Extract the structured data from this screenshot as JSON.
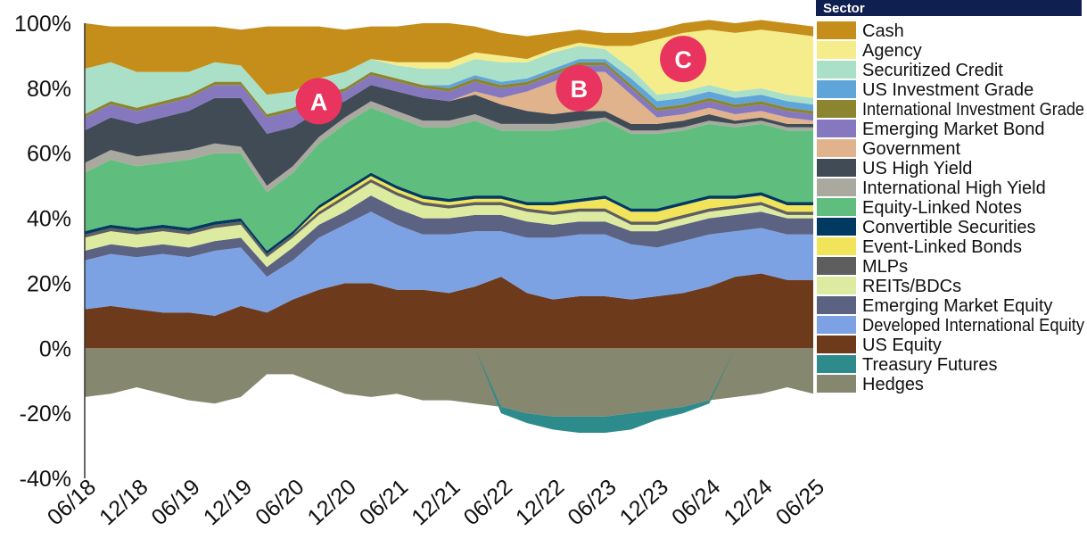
{
  "chart_data": {
    "type": "area",
    "stacked": true,
    "x": [
      "06/18",
      "09/18",
      "12/18",
      "03/19",
      "06/19",
      "09/19",
      "12/19",
      "03/20",
      "06/20",
      "09/20",
      "12/20",
      "03/21",
      "06/21",
      "09/21",
      "12/21",
      "03/22",
      "06/22",
      "09/22",
      "12/22",
      "03/23",
      "06/23",
      "09/23",
      "12/23",
      "03/24",
      "06/24",
      "09/24",
      "12/24",
      "03/25",
      "06/25"
    ],
    "xtick_labels": [
      "06/18",
      "12/18",
      "06/19",
      "12/19",
      "06/20",
      "12/20",
      "06/21",
      "12/21",
      "06/22",
      "12/22",
      "06/23",
      "12/23",
      "06/24",
      "12/24",
      "06/25"
    ],
    "ylim": [
      -40,
      100
    ],
    "yticks": [
      -40,
      -20,
      0,
      20,
      40,
      60,
      80,
      100
    ],
    "ytick_labels": [
      "-40%",
      "-20%",
      "0%",
      "20%",
      "40%",
      "60%",
      "80%",
      "100%"
    ],
    "legend_title": "Sector",
    "legend_position": "right",
    "series": [
      {
        "name": "Hedges",
        "color": "#85876F",
        "values": [
          -15,
          -14,
          -12,
          -14,
          -16,
          -17,
          -15,
          -8,
          -8,
          -11,
          -14,
          -15,
          -14,
          -16,
          -16,
          -17,
          -18,
          -20,
          -21,
          -21,
          -21,
          -20,
          -19,
          -18,
          -16,
          -15,
          -14,
          -12,
          -14
        ]
      },
      {
        "name": "Treasury Futures",
        "color": "#2E8B8C",
        "values": [
          0,
          0,
          0,
          0,
          0,
          0,
          0,
          0,
          0,
          0,
          0,
          0,
          0,
          0,
          0,
          0,
          -2,
          -3,
          -4,
          -5,
          -5,
          -5,
          -3,
          -2,
          -1,
          0,
          0,
          0,
          0
        ]
      },
      {
        "name": "US Equity",
        "color": "#6E3A1C",
        "values": [
          12,
          13,
          12,
          11,
          11,
          10,
          13,
          11,
          15,
          18,
          20,
          20,
          18,
          18,
          17,
          19,
          22,
          17,
          15,
          16,
          16,
          15,
          16,
          17,
          19,
          22,
          23,
          21,
          21
        ]
      },
      {
        "name": "Developed International Equity",
        "color": "#7CA2E4",
        "values": [
          15,
          16,
          16,
          18,
          17,
          20,
          18,
          11,
          12,
          16,
          18,
          22,
          20,
          17,
          18,
          17,
          14,
          17,
          19,
          19,
          19,
          17,
          15,
          16,
          16,
          14,
          14,
          14,
          14
        ]
      },
      {
        "name": "Emerging Market Equity",
        "color": "#5C6282",
        "values": [
          3,
          3,
          3,
          3,
          3,
          3,
          3,
          3,
          4,
          4,
          4,
          5,
          5,
          5,
          5,
          5,
          5,
          5,
          4,
          4,
          4,
          4,
          5,
          5,
          5,
          5,
          5,
          5,
          5
        ]
      },
      {
        "name": "REITs/BDCs",
        "color": "#DDEBA0",
        "values": [
          4,
          4,
          4,
          4,
          4,
          4,
          4,
          3,
          3,
          3,
          4,
          4,
          4,
          4,
          3,
          3,
          3,
          3,
          3,
          3,
          3,
          2,
          2,
          2,
          2,
          2,
          2,
          1,
          1
        ]
      },
      {
        "name": "MLPs",
        "color": "#5E5E5E",
        "values": [
          1,
          1,
          1,
          1,
          1,
          1,
          1,
          1,
          1,
          1,
          1,
          1,
          1,
          1,
          1,
          1,
          1,
          1,
          1,
          1,
          1,
          1,
          1,
          1,
          1,
          1,
          1,
          1,
          1
        ]
      },
      {
        "name": "Event-Linked Bonds",
        "color": "#F1E45A",
        "values": [
          0,
          0,
          0,
          0,
          0,
          0,
          0,
          0,
          0,
          1,
          1,
          1,
          1,
          1,
          1,
          1,
          1,
          1,
          2,
          2,
          3,
          3,
          3,
          3,
          3,
          2,
          2,
          2,
          2
        ]
      },
      {
        "name": "Convertible Securities",
        "color": "#003A60",
        "values": [
          1,
          1,
          1,
          1,
          1,
          1,
          1,
          1,
          1,
          1,
          1,
          1,
          1,
          1,
          1,
          1,
          1,
          1,
          1,
          1,
          1,
          1,
          1,
          1,
          1,
          1,
          1,
          1,
          1
        ]
      },
      {
        "name": "Equity-Linked Notes",
        "color": "#5FBE7E",
        "values": [
          18,
          20,
          19,
          19,
          21,
          21,
          20,
          18,
          18,
          19,
          20,
          20,
          21,
          21,
          22,
          23,
          20,
          22,
          22,
          22,
          23,
          23,
          23,
          22,
          22,
          21,
          21,
          22,
          22
        ]
      },
      {
        "name": "International High Yield",
        "color": "#A9A9A0",
        "values": [
          3,
          3,
          3,
          3,
          3,
          3,
          2,
          2,
          2,
          2,
          2,
          2,
          2,
          2,
          2,
          2,
          2,
          2,
          2,
          2,
          1,
          1,
          1,
          1,
          1,
          1,
          1,
          1,
          1
        ]
      },
      {
        "name": "US High Yield",
        "color": "#404B56",
        "values": [
          10,
          10,
          10,
          11,
          12,
          14,
          15,
          16,
          12,
          8,
          5,
          5,
          6,
          7,
          6,
          6,
          6,
          4,
          3,
          3,
          2,
          2,
          2,
          2,
          2,
          1,
          1,
          1,
          1
        ]
      },
      {
        "name": "Government",
        "color": "#E0B38C",
        "values": [
          0,
          0,
          0,
          0,
          0,
          0,
          0,
          0,
          0,
          0,
          0,
          0,
          0,
          0,
          0,
          1,
          2,
          6,
          10,
          12,
          12,
          9,
          2,
          2,
          2,
          2,
          2,
          2,
          1
        ]
      },
      {
        "name": "Emerging Market Bond",
        "color": "#8578BF",
        "values": [
          4,
          4,
          4,
          4,
          4,
          4,
          4,
          5,
          5,
          4,
          3,
          3,
          3,
          3,
          3,
          3,
          3,
          2,
          2,
          2,
          2,
          2,
          2,
          2,
          2,
          2,
          2,
          2,
          2
        ]
      },
      {
        "name": "International Investment Grade",
        "color": "#8C8530",
        "values": [
          1,
          1,
          1,
          1,
          1,
          1,
          1,
          1,
          1,
          1,
          1,
          1,
          1,
          1,
          1,
          1,
          1,
          1,
          1,
          1,
          1,
          1,
          1,
          1,
          1,
          1,
          1,
          1,
          1
        ]
      },
      {
        "name": "US Investment Grade",
        "color": "#5FA5D9",
        "values": [
          0,
          0,
          0,
          0,
          0,
          0,
          0,
          0,
          0,
          0,
          0,
          0,
          0,
          0,
          1,
          1,
          1,
          1,
          1,
          1,
          1,
          2,
          2,
          2,
          2,
          2,
          2,
          2,
          2
        ]
      },
      {
        "name": "Securitized Credit",
        "color": "#ABE0C8",
        "values": [
          14,
          12,
          11,
          9,
          7,
          6,
          5,
          6,
          5,
          5,
          5,
          4,
          4,
          5,
          5,
          5,
          6,
          5,
          5,
          4,
          3,
          3,
          2,
          2,
          2,
          2,
          2,
          2,
          2
        ]
      },
      {
        "name": "Agency",
        "color": "#F5ED8C",
        "values": [
          0,
          0,
          0,
          0,
          0,
          0,
          0,
          0,
          0,
          0,
          0,
          0,
          1,
          2,
          2,
          2,
          2,
          1,
          1,
          1,
          1,
          7,
          17,
          18,
          17,
          18,
          18,
          19,
          19
        ]
      },
      {
        "name": "Cash",
        "color": "#C58E1A",
        "values": [
          14,
          11,
          14,
          14,
          14,
          11,
          11,
          21,
          20,
          16,
          13,
          10,
          11,
          12,
          12,
          8,
          7,
          7,
          5,
          4,
          4,
          4,
          3,
          3,
          3,
          3,
          3,
          3,
          3
        ]
      }
    ],
    "annotations": [
      {
        "label": "A",
        "x": "09/20",
        "y": 76
      },
      {
        "label": "B",
        "x": "03/23",
        "y": 80
      },
      {
        "label": "C",
        "x": "03/24",
        "y": 89
      }
    ],
    "annotation_color": "#E8345E",
    "axis_color": "#333333"
  }
}
